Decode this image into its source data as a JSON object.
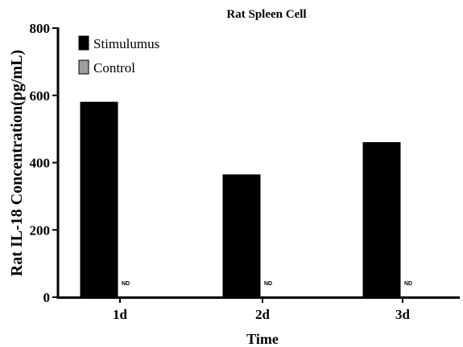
{
  "chart_data": {
    "type": "bar",
    "title": "Rat Spleen Cell",
    "xlabel": "Time",
    "ylabel": "Rat IL-18 Concentration(pg/mL)",
    "categories": [
      "1d",
      "2d",
      "3d"
    ],
    "ylim": [
      0,
      800
    ],
    "yticks": [
      0,
      200,
      400,
      600,
      800
    ],
    "series": [
      {
        "name": "Stimulumus",
        "color": "#000000",
        "values": [
          581,
          365,
          461
        ]
      },
      {
        "name": "Control",
        "color": "#9e9e9e",
        "values": [
          null,
          null,
          null
        ]
      }
    ],
    "annotations": [
      "ND",
      "ND",
      "ND"
    ],
    "legend": "top-left",
    "grid": false
  }
}
